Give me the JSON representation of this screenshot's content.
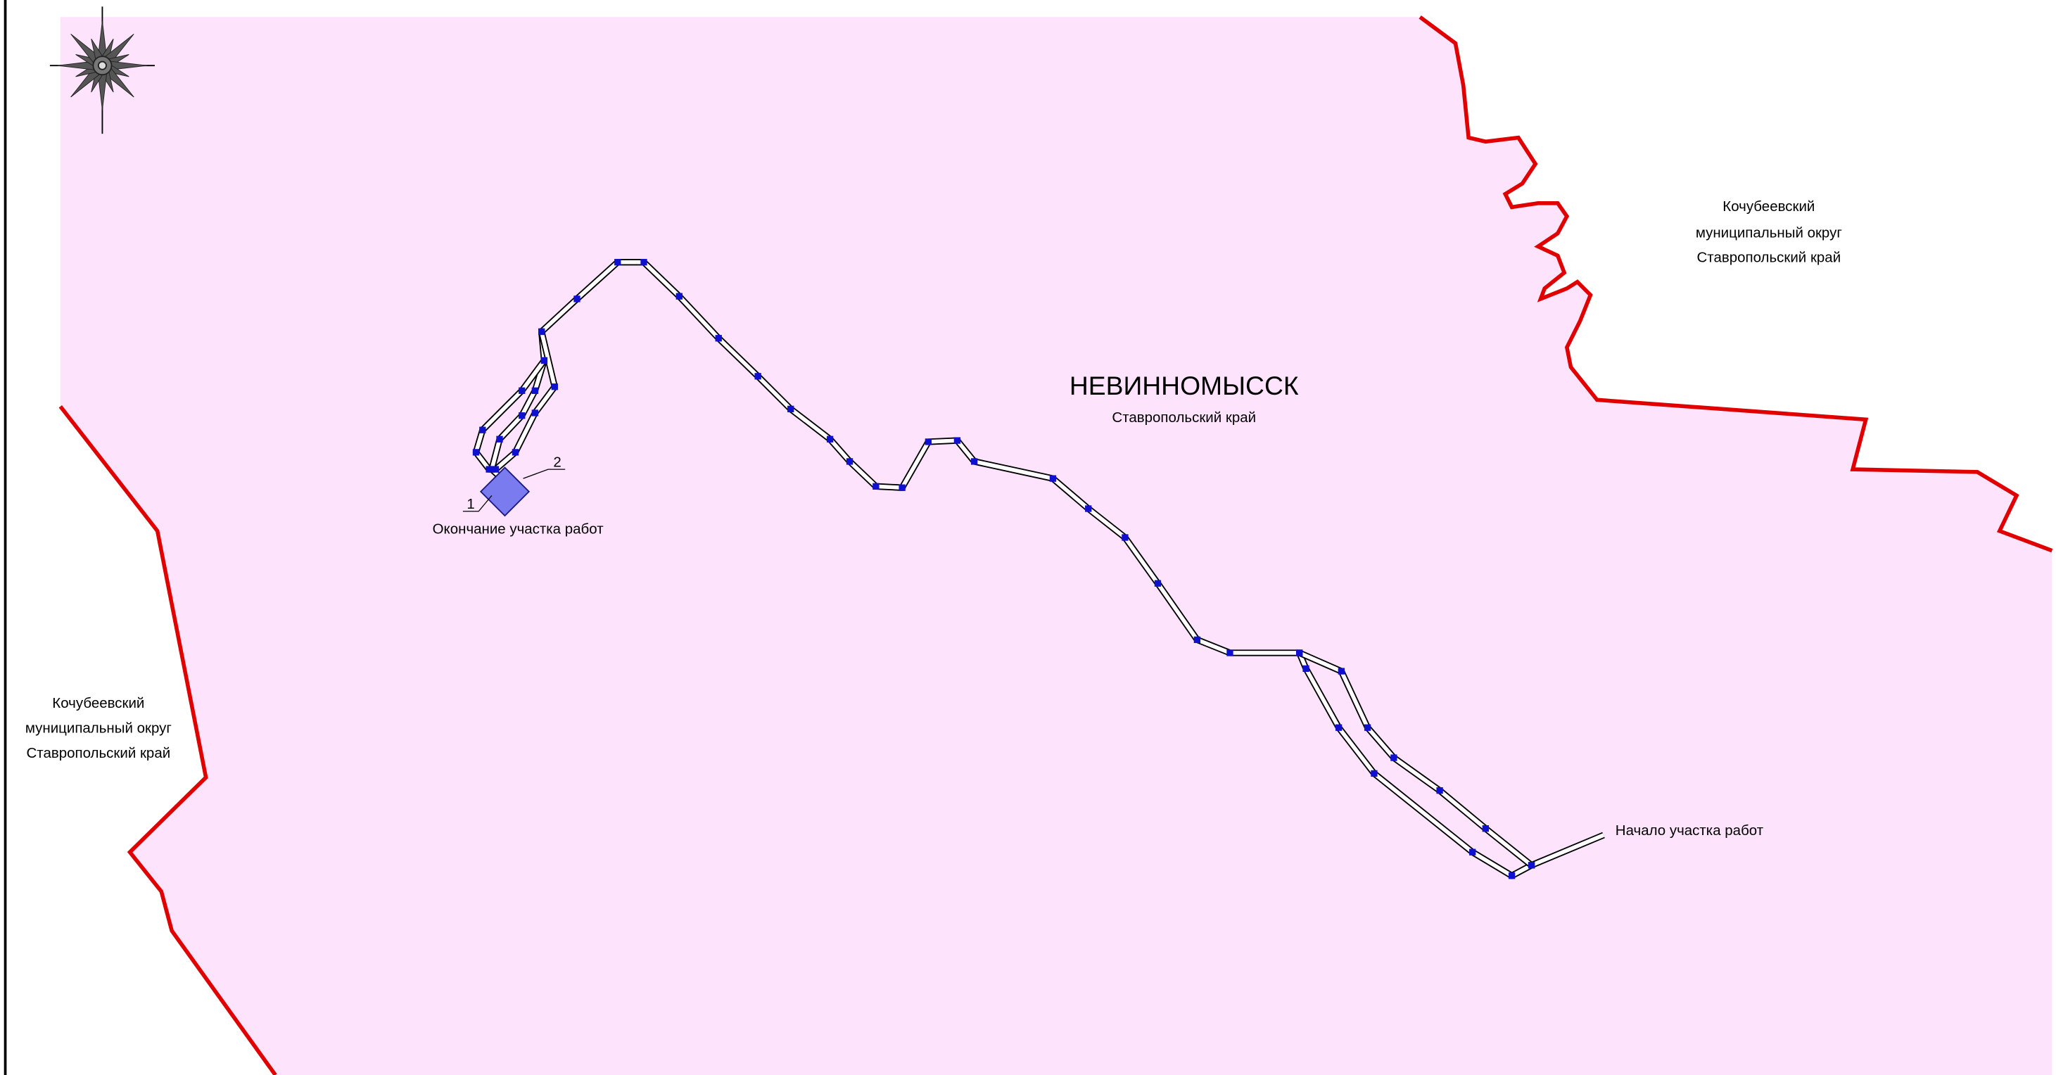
{
  "map": {
    "city": {
      "name": "НЕВИННОМЫССК",
      "region": "Ставропольский край"
    },
    "districts": [
      {
        "lines": [
          "Кочубеевский",
          "муниципальный округ",
          "Ставропольский край"
        ]
      },
      {
        "lines": [
          "Кочубеевский",
          "муниципальный округ",
          "Ставропольский край"
        ]
      }
    ],
    "route": {
      "start_label": "Начало участка работ",
      "end_label": "Окончание участка работ"
    },
    "markers": [
      "1",
      "2"
    ]
  }
}
